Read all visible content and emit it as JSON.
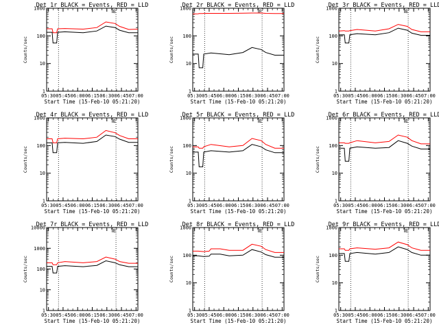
{
  "chart_data": [
    {
      "type": "line",
      "title": "Det 1r BLACK = Events, RED = LLD",
      "xlabel": "Start Time (15-Feb-10 05:21:20)",
      "ylabel": "Counts/sec",
      "yscale": "log",
      "ylim": [
        1,
        1000
      ],
      "ytick_labels": [
        "1",
        "10",
        "100",
        "1000"
      ],
      "xtick_labels": [
        "05:30",
        "05:45",
        "06:00",
        "06:15",
        "06:30",
        "06:45",
        "07:00"
      ],
      "xlim_minutes_after_start": [
        0,
        100
      ],
      "marker_label": "E",
      "x": [
        0,
        6,
        7,
        11,
        12,
        20,
        40,
        55,
        65,
        75,
        80,
        90,
        100
      ],
      "series": [
        {
          "name": "LLD",
          "color": "#ff0000",
          "values": [
            180,
            180,
            130,
            130,
            180,
            185,
            175,
            200,
            320,
            280,
            220,
            170,
            175
          ]
        },
        {
          "name": "Events",
          "color": "#000000",
          "values": [
            135,
            135,
            55,
            55,
            135,
            140,
            130,
            150,
            225,
            200,
            160,
            130,
            130
          ]
        }
      ]
    },
    {
      "type": "line",
      "title": "Det 2r BLACK = Events, RED = LLD",
      "xlabel": "Start Time (15-Feb-10 05:21:20)",
      "ylabel": "Counts/sec",
      "yscale": "log",
      "ylim": [
        1,
        1000
      ],
      "ytick_labels": [
        "1",
        "10",
        "100",
        "1000"
      ],
      "xtick_labels": [
        "05:30",
        "05:45",
        "06:00",
        "06:15",
        "06:30",
        "06:45",
        "07:00"
      ],
      "xlim_minutes_after_start": [
        0,
        100
      ],
      "marker_label": "E",
      "x": [
        0,
        6,
        7,
        11,
        12,
        20,
        40,
        55,
        65,
        75,
        80,
        90,
        100
      ],
      "series": [
        {
          "name": "LLD",
          "color": "#ff0000",
          "values": [
            620,
            630,
            640,
            640,
            650,
            650,
            650,
            660,
            670,
            670,
            650,
            640,
            640
          ]
        },
        {
          "name": "Events",
          "color": "#000000",
          "values": [
            22,
            22,
            7,
            7,
            22,
            24,
            21,
            25,
            38,
            32,
            25,
            20,
            20
          ]
        }
      ]
    },
    {
      "type": "line",
      "title": "Det 3r BLACK = Events, RED = LLD",
      "xlabel": "Start Time (15-Feb-10 05:21:20)",
      "ylabel": "Counts/sec",
      "yscale": "log",
      "ylim": [
        1,
        1000
      ],
      "ytick_labels": [
        "1",
        "10",
        "100",
        "1000"
      ],
      "xtick_labels": [
        "05:30",
        "05:45",
        "06:00",
        "06:15",
        "06:30",
        "06:45",
        "07:00"
      ],
      "xlim_minutes_after_start": [
        0,
        100
      ],
      "marker_label": "E",
      "x": [
        0,
        6,
        7,
        11,
        12,
        20,
        40,
        55,
        65,
        75,
        80,
        90,
        100
      ],
      "series": [
        {
          "name": "LLD",
          "color": "#ff0000",
          "values": [
            150,
            155,
            150,
            150,
            155,
            170,
            150,
            180,
            260,
            220,
            170,
            140,
            140
          ]
        },
        {
          "name": "Events",
          "color": "#000000",
          "values": [
            110,
            110,
            55,
            55,
            110,
            120,
            110,
            130,
            190,
            160,
            125,
            105,
            105
          ]
        }
      ]
    },
    {
      "type": "line",
      "title": "Det 4r BLACK = Events, RED = LLD",
      "xlabel": "Start Time (15-Feb-10 05:21:20)",
      "ylabel": "Counts/sec",
      "yscale": "log",
      "ylim": [
        1,
        1000
      ],
      "ytick_labels": [
        "1",
        "10",
        "100",
        "1000"
      ],
      "xtick_labels": [
        "05:30",
        "05:45",
        "06:00",
        "06:15",
        "06:30",
        "06:45",
        "07:00"
      ],
      "xlim_minutes_after_start": [
        0,
        100
      ],
      "marker_label": "E",
      "x": [
        0,
        6,
        7,
        11,
        12,
        20,
        40,
        55,
        65,
        75,
        80,
        90,
        100
      ],
      "series": [
        {
          "name": "LLD",
          "color": "#ff0000",
          "values": [
            175,
            175,
            125,
            125,
            175,
            185,
            175,
            200,
            350,
            290,
            230,
            175,
            175
          ]
        },
        {
          "name": "Events",
          "color": "#000000",
          "values": [
            125,
            125,
            55,
            55,
            125,
            130,
            120,
            140,
            240,
            210,
            170,
            130,
            130
          ]
        }
      ]
    },
    {
      "type": "line",
      "title": "Det 5r BLACK = Events, RED = LLD",
      "xlabel": "Start Time (15-Feb-10 05:21:20)",
      "ylabel": "Counts/sec",
      "yscale": "log",
      "ylim": [
        1,
        1000
      ],
      "ytick_labels": [
        "1",
        "10",
        "100",
        "1000"
      ],
      "xtick_labels": [
        "05:30",
        "05:45",
        "06:00",
        "06:15",
        "06:30",
        "06:45",
        "07:00"
      ],
      "xlim_minutes_after_start": [
        0,
        100
      ],
      "marker_label": "E",
      "x": [
        0,
        6,
        7,
        11,
        12,
        20,
        40,
        55,
        65,
        75,
        80,
        90,
        100
      ],
      "series": [
        {
          "name": "LLD",
          "color": "#ff0000",
          "values": [
            90,
            90,
            80,
            80,
            90,
            110,
            90,
            100,
            180,
            150,
            110,
            80,
            80
          ]
        },
        {
          "name": "Events",
          "color": "#000000",
          "values": [
            58,
            58,
            17,
            17,
            58,
            65,
            58,
            65,
            110,
            90,
            70,
            55,
            55
          ]
        }
      ]
    },
    {
      "type": "line",
      "title": "Det 6r BLACK = Events, RED = LLD",
      "xlabel": "Start Time (15-Feb-10 05:21:20)",
      "ylabel": "Counts/sec",
      "yscale": "log",
      "ylim": [
        1,
        1000
      ],
      "ytick_labels": [
        "1",
        "10",
        "100",
        "1000"
      ],
      "xtick_labels": [
        "05:30",
        "05:45",
        "06:00",
        "06:15",
        "06:30",
        "06:45",
        "07:00"
      ],
      "xlim_minutes_after_start": [
        0,
        100
      ],
      "marker_label": "E",
      "x": [
        0,
        6,
        7,
        11,
        12,
        20,
        40,
        55,
        65,
        75,
        80,
        90,
        100
      ],
      "series": [
        {
          "name": "LLD",
          "color": "#ff0000",
          "values": [
            125,
            125,
            120,
            120,
            125,
            150,
            125,
            140,
            240,
            200,
            150,
            115,
            115
          ]
        },
        {
          "name": "Events",
          "color": "#000000",
          "values": [
            80,
            80,
            27,
            27,
            80,
            90,
            80,
            85,
            150,
            120,
            95,
            75,
            75
          ]
        }
      ]
    },
    {
      "type": "line",
      "title": "Det 7r BLACK = Events, RED = LLD",
      "xlabel": "Start Time (15-Feb-10 05:21:20)",
      "ylabel": "Counts/sec",
      "yscale": "log",
      "ylim": [
        1,
        10000
      ],
      "ytick_labels": [
        "1",
        "10",
        "100",
        "1000",
        "10000"
      ],
      "xtick_labels": [
        "05:30",
        "05:45",
        "06:00",
        "06:15",
        "06:30",
        "06:45",
        "07:00"
      ],
      "xlim_minutes_after_start": [
        0,
        100
      ],
      "marker_label": "E",
      "x": [
        0,
        6,
        7,
        11,
        12,
        20,
        40,
        55,
        65,
        75,
        80,
        90,
        100
      ],
      "series": [
        {
          "name": "LLD",
          "color": "#ff0000",
          "values": [
            200,
            200,
            160,
            160,
            200,
            230,
            200,
            230,
            380,
            300,
            230,
            190,
            190
          ]
        },
        {
          "name": "Events",
          "color": "#000000",
          "values": [
            135,
            135,
            65,
            65,
            135,
            145,
            130,
            150,
            250,
            200,
            160,
            130,
            130
          ]
        }
      ]
    },
    {
      "type": "line",
      "title": "Det 8r BLACK = Events, RED = LLD",
      "xlabel": "Start Time (15-Feb-10 05:21:20)",
      "ylabel": "Counts/sec",
      "yscale": "log",
      "ylim": [
        1,
        1000
      ],
      "ytick_labels": [
        "1",
        "10",
        "100",
        "1000"
      ],
      "xtick_labels": [
        "05:30",
        "05:45",
        "06:00",
        "06:15",
        "06:30",
        "06:45",
        "07:00"
      ],
      "xlim_minutes_after_start": [
        0,
        100
      ],
      "marker_label": "E",
      "x": [
        0,
        6,
        12,
        18,
        20,
        30,
        40,
        55,
        65,
        75,
        80,
        90,
        100
      ],
      "series": [
        {
          "name": "LLD",
          "color": "#ff0000",
          "values": [
            140,
            140,
            135,
            140,
            170,
            170,
            150,
            150,
            250,
            210,
            160,
            125,
            125
          ]
        },
        {
          "name": "Events",
          "color": "#000000",
          "values": [
            95,
            95,
            90,
            92,
            110,
            110,
            95,
            100,
            160,
            130,
            105,
            85,
            85
          ]
        }
      ]
    },
    {
      "type": "line",
      "title": "Det 9r BLACK = Events, RED = LLD",
      "xlabel": "Start Time (15-Feb-10 05:21:20)",
      "ylabel": "Counts/sec",
      "yscale": "log",
      "ylim": [
        1,
        1000
      ],
      "ytick_labels": [
        "1",
        "10",
        "100",
        "1000"
      ],
      "xtick_labels": [
        "05:30",
        "05:45",
        "06:00",
        "06:15",
        "06:30",
        "06:45",
        "07:00"
      ],
      "xlim_minutes_after_start": [
        0,
        100
      ],
      "marker_label": "E",
      "x": [
        0,
        6,
        7,
        11,
        12,
        20,
        40,
        55,
        65,
        75,
        80,
        90,
        100
      ],
      "series": [
        {
          "name": "LLD",
          "color": "#ff0000",
          "values": [
            170,
            170,
            150,
            150,
            170,
            185,
            165,
            185,
            300,
            240,
            185,
            150,
            150
          ]
        },
        {
          "name": "Events",
          "color": "#000000",
          "values": [
            115,
            115,
            60,
            60,
            115,
            125,
            110,
            125,
            200,
            160,
            125,
            100,
            100
          ]
        }
      ]
    }
  ]
}
